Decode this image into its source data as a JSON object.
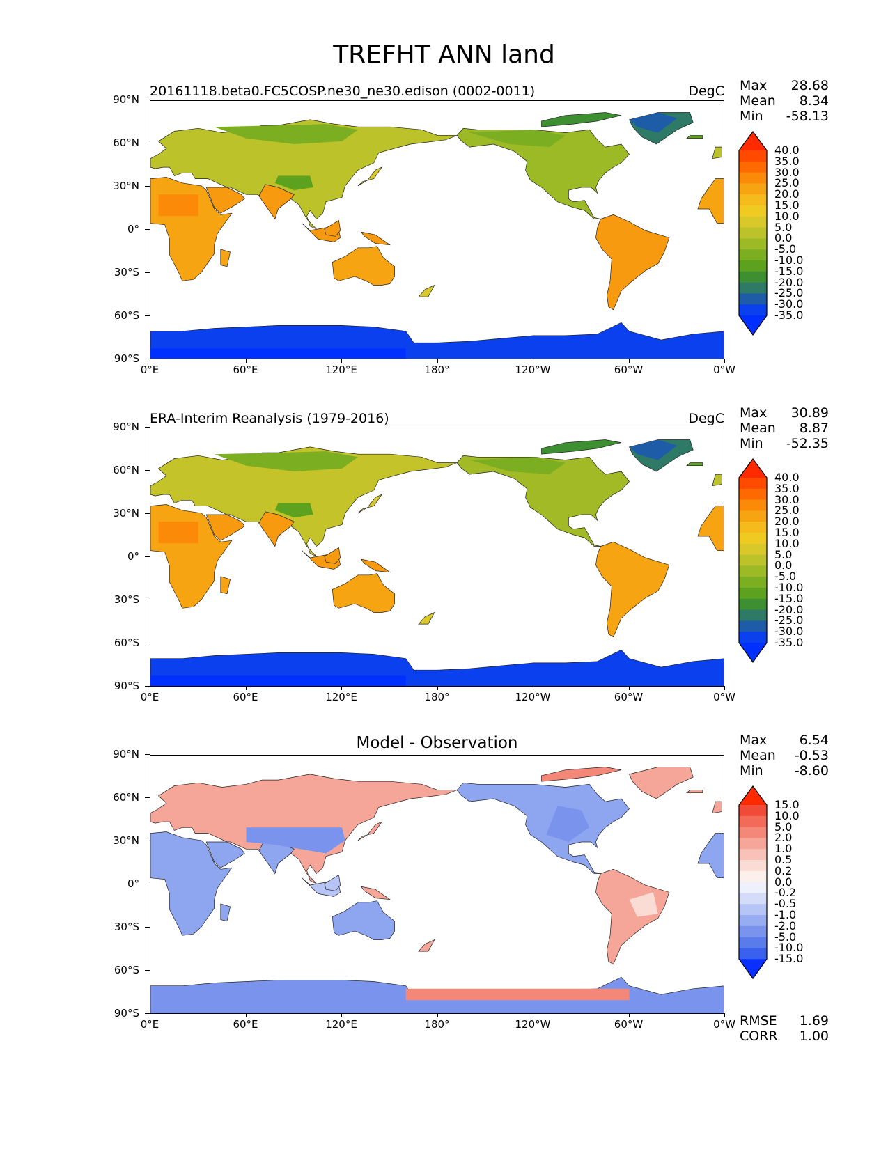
{
  "figure": {
    "title": "TREFHT ANN land",
    "lat_ticks": [
      "90°N",
      "60°N",
      "30°N",
      "0°",
      "30°S",
      "60°S",
      "90°S"
    ],
    "lon_ticks": [
      "0°E",
      "60°E",
      "120°E",
      "180°",
      "120°W",
      "60°W",
      "0°W"
    ]
  },
  "panels": [
    {
      "id": "test",
      "title": "20161118.beta0.FC5COSP.ne30_ne30.edison (0002-0011)",
      "units": "DegC",
      "stats": [
        {
          "label": "Max",
          "value": "28.68"
        },
        {
          "label": "Mean",
          "value": "8.34"
        },
        {
          "label": "Min",
          "value": "-58.13"
        }
      ],
      "colorbar": {
        "labels": [
          "40.0",
          "35.0",
          "30.0",
          "25.0",
          "20.0",
          "15.0",
          "10.0",
          "5.0",
          "0.0",
          "-5.0",
          "-10.0",
          "-15.0",
          "-20.0",
          "-25.0",
          "-30.0",
          "-35.0"
        ],
        "colors": [
          "#ff2a00",
          "#ff4a00",
          "#ff6a00",
          "#fb8a08",
          "#f7a412",
          "#f5bb1c",
          "#efcb22",
          "#d8c82a",
          "#bcc22a",
          "#9cba26",
          "#7cae22",
          "#5ca21e",
          "#3e8e32",
          "#2e7a66",
          "#1e5ca8",
          "#0a40ee",
          "#0030ff"
        ]
      }
    },
    {
      "id": "reference",
      "title": "ERA-Interim Reanalysis (1979-2016)",
      "units": "DegC",
      "stats": [
        {
          "label": "Max",
          "value": "30.89"
        },
        {
          "label": "Mean",
          "value": "8.87"
        },
        {
          "label": "Min",
          "value": "-52.35"
        }
      ],
      "colorbar": {
        "labels": [
          "40.0",
          "35.0",
          "30.0",
          "25.0",
          "20.0",
          "15.0",
          "10.0",
          "5.0",
          "0.0",
          "-5.0",
          "-10.0",
          "-15.0",
          "-20.0",
          "-25.0",
          "-30.0",
          "-35.0"
        ],
        "colors": [
          "#ff2a00",
          "#ff4a00",
          "#ff6a00",
          "#fb8a08",
          "#f7a412",
          "#f5bb1c",
          "#efcb22",
          "#d8c82a",
          "#bcc22a",
          "#9cba26",
          "#7cae22",
          "#5ca21e",
          "#3e8e32",
          "#2e7a66",
          "#1e5ca8",
          "#0a40ee",
          "#0030ff"
        ]
      }
    },
    {
      "id": "diff",
      "title": "Model - Observation",
      "units": "",
      "stats": [
        {
          "label": "Max",
          "value": "6.54"
        },
        {
          "label": "Mean",
          "value": "-0.53"
        },
        {
          "label": "Min",
          "value": "-8.60"
        }
      ],
      "colorbar": {
        "labels": [
          "15.0",
          "10.0",
          "5.0",
          "2.0",
          "1.0",
          "0.5",
          "0.2",
          "0.0",
          "-0.2",
          "-0.5",
          "-1.0",
          "-2.0",
          "-5.0",
          "-10.0",
          "-15.0"
        ],
        "colors": [
          "#ff2a00",
          "#f04a38",
          "#f26a58",
          "#f48878",
          "#f6a698",
          "#f8c2b8",
          "#fadcd4",
          "#fcf0ec",
          "#eef0fc",
          "#d4dcfa",
          "#b6c4f6",
          "#98acf2",
          "#7a94ee",
          "#5a7cea",
          "#3a60ee",
          "#0a30ff"
        ]
      },
      "extra": [
        {
          "label": "RMSE",
          "value": "1.69"
        },
        {
          "label": "CORR",
          "value": "1.00"
        }
      ]
    }
  ]
}
